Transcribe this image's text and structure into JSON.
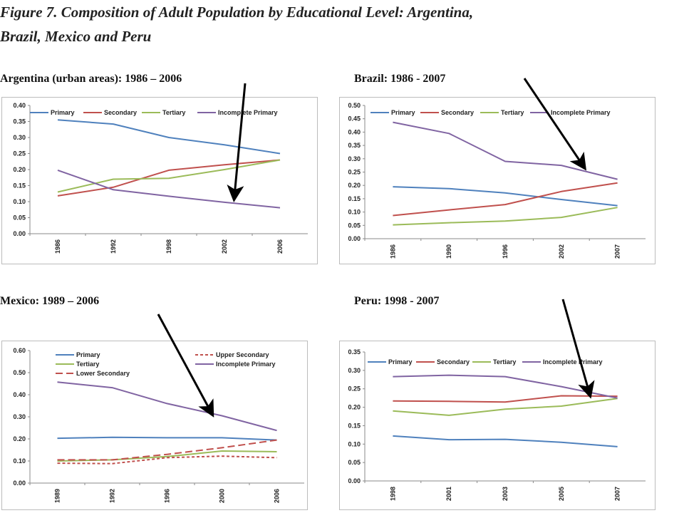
{
  "figure": {
    "title_line1": "Figure 7. Composition of Adult Population by Educational Level: Argentina,",
    "title_line2": "Brazil, Mexico and Peru"
  },
  "chart_data": [
    {
      "type": "line",
      "title": "Argentina (urban areas): 1986 – 2006",
      "categories": [
        "1986",
        "1992",
        "1998",
        "2002",
        "2006"
      ],
      "ylim": [
        0,
        0.4
      ],
      "y_ticks": [
        "0.00",
        "0.05",
        "0.10",
        "0.15",
        "0.20",
        "0.25",
        "0.30",
        "0.35",
        "0.40"
      ],
      "legend": "top",
      "series": [
        {
          "name": "Primary",
          "color": "#4f81bd",
          "dash": "solid",
          "values": [
            0.355,
            0.342,
            0.3,
            0.277,
            0.25
          ]
        },
        {
          "name": "Secondary",
          "color": "#c0504d",
          "dash": "solid",
          "values": [
            0.118,
            0.145,
            0.198,
            0.215,
            0.23
          ]
        },
        {
          "name": "Tertiary",
          "color": "#9bbb59",
          "dash": "solid",
          "values": [
            0.13,
            0.17,
            0.173,
            0.2,
            0.23
          ]
        },
        {
          "name": "Incomplete Primary",
          "color": "#8064a2",
          "dash": "solid",
          "values": [
            0.198,
            0.137,
            0.117,
            0.098,
            0.081
          ]
        }
      ]
    },
    {
      "type": "line",
      "title": "Brazil: 1986 - 2007",
      "categories": [
        "1986",
        "1990",
        "1996",
        "2002",
        "2007"
      ],
      "ylim": [
        0,
        0.5
      ],
      "y_ticks": [
        "0.00",
        "0.05",
        "0.10",
        "0.15",
        "0.20",
        "0.25",
        "0.30",
        "0.35",
        "0.40",
        "0.45",
        "0.50"
      ],
      "legend": "top",
      "series": [
        {
          "name": "Primary",
          "color": "#4f81bd",
          "dash": "solid",
          "values": [
            0.195,
            0.188,
            0.172,
            0.147,
            0.124
          ]
        },
        {
          "name": "Secondary",
          "color": "#c0504d",
          "dash": "solid",
          "values": [
            0.087,
            0.108,
            0.128,
            0.177,
            0.209
          ]
        },
        {
          "name": "Tertiary",
          "color": "#9bbb59",
          "dash": "solid",
          "values": [
            0.052,
            0.06,
            0.066,
            0.08,
            0.117
          ]
        },
        {
          "name": "Incomplete Primary",
          "color": "#8064a2",
          "dash": "solid",
          "values": [
            0.437,
            0.395,
            0.29,
            0.275,
            0.223
          ]
        }
      ]
    },
    {
      "type": "line",
      "title": "Mexico: 1989 – 2006",
      "categories": [
        "1989",
        "1992",
        "1996",
        "2000",
        "2006"
      ],
      "ylim": [
        0,
        0.6
      ],
      "y_ticks": [
        "0.00",
        "0.10",
        "0.20",
        "0.30",
        "0.40",
        "0.50",
        "0.60"
      ],
      "legend": "top",
      "series": [
        {
          "name": "Primary",
          "color": "#4f81bd",
          "dash": "solid",
          "values": [
            0.203,
            0.207,
            0.205,
            0.205,
            0.195
          ]
        },
        {
          "name": "Tertiary",
          "color": "#9bbb59",
          "dash": "solid",
          "values": [
            0.1,
            0.105,
            0.12,
            0.145,
            0.142
          ]
        },
        {
          "name": "Lower Secondary",
          "color": "#c0504d",
          "dash": "long-dash",
          "values": [
            0.105,
            0.105,
            0.13,
            0.16,
            0.195
          ]
        },
        {
          "name": "Upper Secondary",
          "color": "#c0504d",
          "dash": "short-dash",
          "values": [
            0.09,
            0.088,
            0.115,
            0.122,
            0.115
          ]
        },
        {
          "name": "Incomplete Primary",
          "color": "#8064a2",
          "dash": "solid",
          "values": [
            0.457,
            0.432,
            0.36,
            0.305,
            0.238
          ]
        }
      ]
    },
    {
      "type": "line",
      "title": "Peru: 1998 - 2007",
      "categories": [
        "1998",
        "2001",
        "2003",
        "2005",
        "2007"
      ],
      "ylim": [
        0,
        0.35
      ],
      "y_ticks": [
        "0.00",
        "0.05",
        "0.10",
        "0.15",
        "0.20",
        "0.25",
        "0.30",
        "0.35"
      ],
      "legend": "top",
      "series": [
        {
          "name": "Primary",
          "color": "#4f81bd",
          "dash": "solid",
          "values": [
            0.122,
            0.112,
            0.113,
            0.105,
            0.093
          ]
        },
        {
          "name": "Secondary",
          "color": "#c0504d",
          "dash": "solid",
          "values": [
            0.217,
            0.216,
            0.214,
            0.231,
            0.23
          ]
        },
        {
          "name": "Tertiary",
          "color": "#9bbb59",
          "dash": "solid",
          "values": [
            0.19,
            0.178,
            0.195,
            0.203,
            0.224
          ]
        },
        {
          "name": "Incomplete Primary",
          "color": "#8064a2",
          "dash": "solid",
          "values": [
            0.283,
            0.287,
            0.283,
            0.256,
            0.225
          ]
        }
      ]
    }
  ]
}
